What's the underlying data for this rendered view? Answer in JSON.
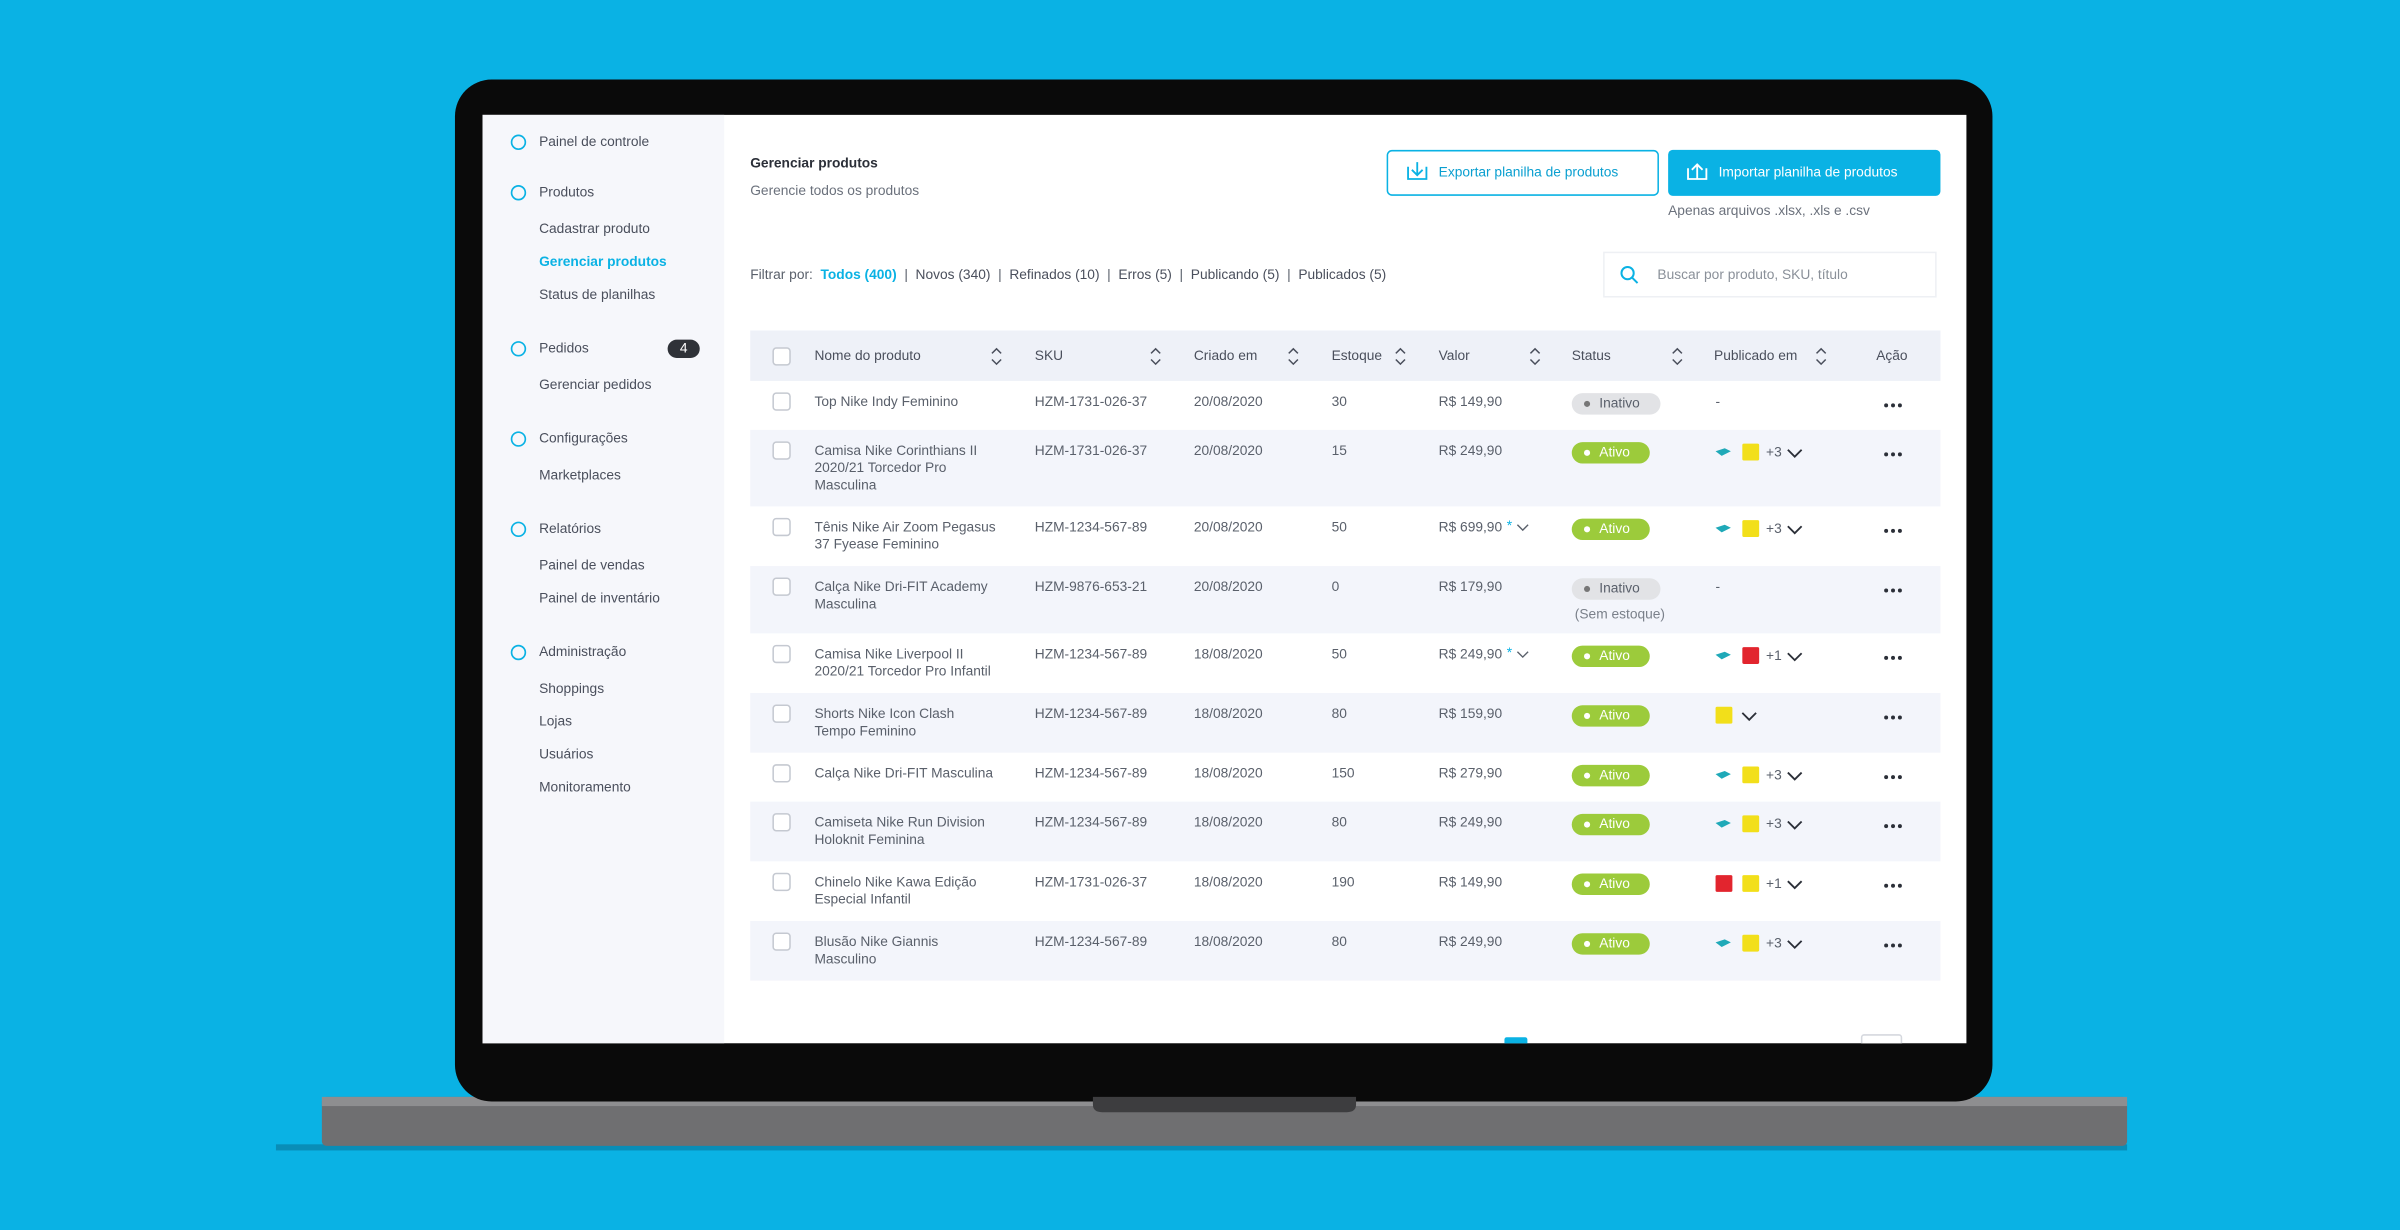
{
  "sidebar": {
    "sections": [
      {
        "title": "Painel de controle",
        "items": []
      },
      {
        "title": "Produtos",
        "items": [
          "Cadastrar produto",
          "Gerenciar produtos",
          "Status de planilhas"
        ]
      },
      {
        "title": "Pedidos",
        "badge": "4",
        "items": [
          "Gerenciar pedidos"
        ]
      },
      {
        "title": "Configurações",
        "items": [
          "Marketplaces"
        ]
      },
      {
        "title": "Relatórios",
        "items": [
          "Painel de vendas",
          "Painel de inventário"
        ]
      },
      {
        "title": "Administração",
        "items": [
          "Shoppings",
          "Lojas",
          "Usuários",
          "Monitoramento"
        ]
      }
    ],
    "active": "Gerenciar produtos"
  },
  "header": {
    "title": "Gerenciar produtos",
    "subtitle": "Gerencie todos os produtos",
    "export_button": "Exportar planilha de produtos",
    "import_button": "Importar planilha de produtos",
    "import_note": "Apenas arquivos .xlsx, .xls e .csv"
  },
  "filter": {
    "label": "Filtrar por:",
    "options": [
      "Todos (400)",
      "Novos (340)",
      "Refinados (10)",
      "Erros (5)",
      "Publicando (5)",
      "Publicados (5)"
    ],
    "separator": "|"
  },
  "search": {
    "placeholder": "Buscar por produto, SKU, título"
  },
  "table": {
    "columns": [
      "Nome do produto",
      "SKU",
      "Criado em",
      "Estoque",
      "Valor",
      "Status",
      "Publicado em",
      "Ação"
    ],
    "rows": [
      {
        "name": [
          "Top Nike Indy Feminino"
        ],
        "sku": "HZM-1731-026-37",
        "created": "20/08/2020",
        "stock": 30,
        "value": "R$ 149,90",
        "status": "Inativo",
        "published": "-"
      },
      {
        "name": [
          "Camisa Nike Corinthians II",
          "2020/21 Torcedor Pro",
          "Masculina"
        ],
        "sku": "HZM-1731-026-37",
        "created": "20/08/2020",
        "stock": 15,
        "value": "R$ 249,90",
        "status": "Ativo",
        "marketplaces": [
          "teal",
          "yellow"
        ],
        "more": "+3"
      },
      {
        "name": [
          "Tênis Nike Air Zoom Pegasus",
          "37 Fyease Feminino"
        ],
        "sku": "HZM-1234-567-89",
        "created": "20/08/2020",
        "stock": 50,
        "value": "R$ 699,90",
        "value_mark": "*",
        "status": "Ativo",
        "marketplaces": [
          "teal",
          "yellow"
        ],
        "more": "+3"
      },
      {
        "name": [
          "Calça Nike Dri-FIT Academy",
          "Masculina"
        ],
        "sku": "HZM-9876-653-21",
        "created": "20/08/2020",
        "stock": 0,
        "value": "R$ 179,90",
        "status": "Inativo",
        "status_note": "(Sem estoque)",
        "published": "-"
      },
      {
        "name": [
          "Camisa Nike Liverpool II",
          "2020/21 Torcedor Pro Infantil"
        ],
        "sku": "HZM-1234-567-89",
        "created": "18/08/2020",
        "stock": 50,
        "value": "R$ 249,90",
        "value_mark": "*",
        "status": "Ativo",
        "marketplaces": [
          "teal",
          "red"
        ],
        "more": "+1"
      },
      {
        "name": [
          "Shorts Nike Icon Clash",
          "Tempo Feminino"
        ],
        "sku": "HZM-1234-567-89",
        "created": "18/08/2020",
        "stock": 80,
        "value": "R$ 159,90",
        "status": "Ativo",
        "marketplaces": [
          "yellow"
        ]
      },
      {
        "name": [
          "Calça Nike Dri-FIT Masculina"
        ],
        "sku": "HZM-1234-567-89",
        "created": "18/08/2020",
        "stock": 150,
        "value": "R$ 279,90",
        "status": "Ativo",
        "marketplaces": [
          "teal",
          "yellow"
        ],
        "more": "+3"
      },
      {
        "name": [
          "Camiseta Nike Run Division",
          "Holoknit Feminina"
        ],
        "sku": "HZM-1234-567-89",
        "created": "18/08/2020",
        "stock": 80,
        "value": "R$ 249,90",
        "status": "Ativo",
        "marketplaces": [
          "teal",
          "yellow"
        ],
        "more": "+3"
      },
      {
        "name": [
          "Chinelo Nike Kawa Edição",
          "Especial Infantil"
        ],
        "sku": "HZM-1731-026-37",
        "created": "18/08/2020",
        "stock": 190,
        "value": "R$ 149,90",
        "status": "Ativo",
        "marketplaces": [
          "red",
          "yellow"
        ],
        "more": "+1"
      },
      {
        "name": [
          "Blusão Nike Giannis",
          "Masculino"
        ],
        "sku": "HZM-1234-567-89",
        "created": "18/08/2020",
        "stock": 80,
        "value": "R$ 249,90",
        "status": "Ativo",
        "marketplaces": [
          "teal",
          "yellow"
        ],
        "more": "+3"
      }
    ]
  }
}
